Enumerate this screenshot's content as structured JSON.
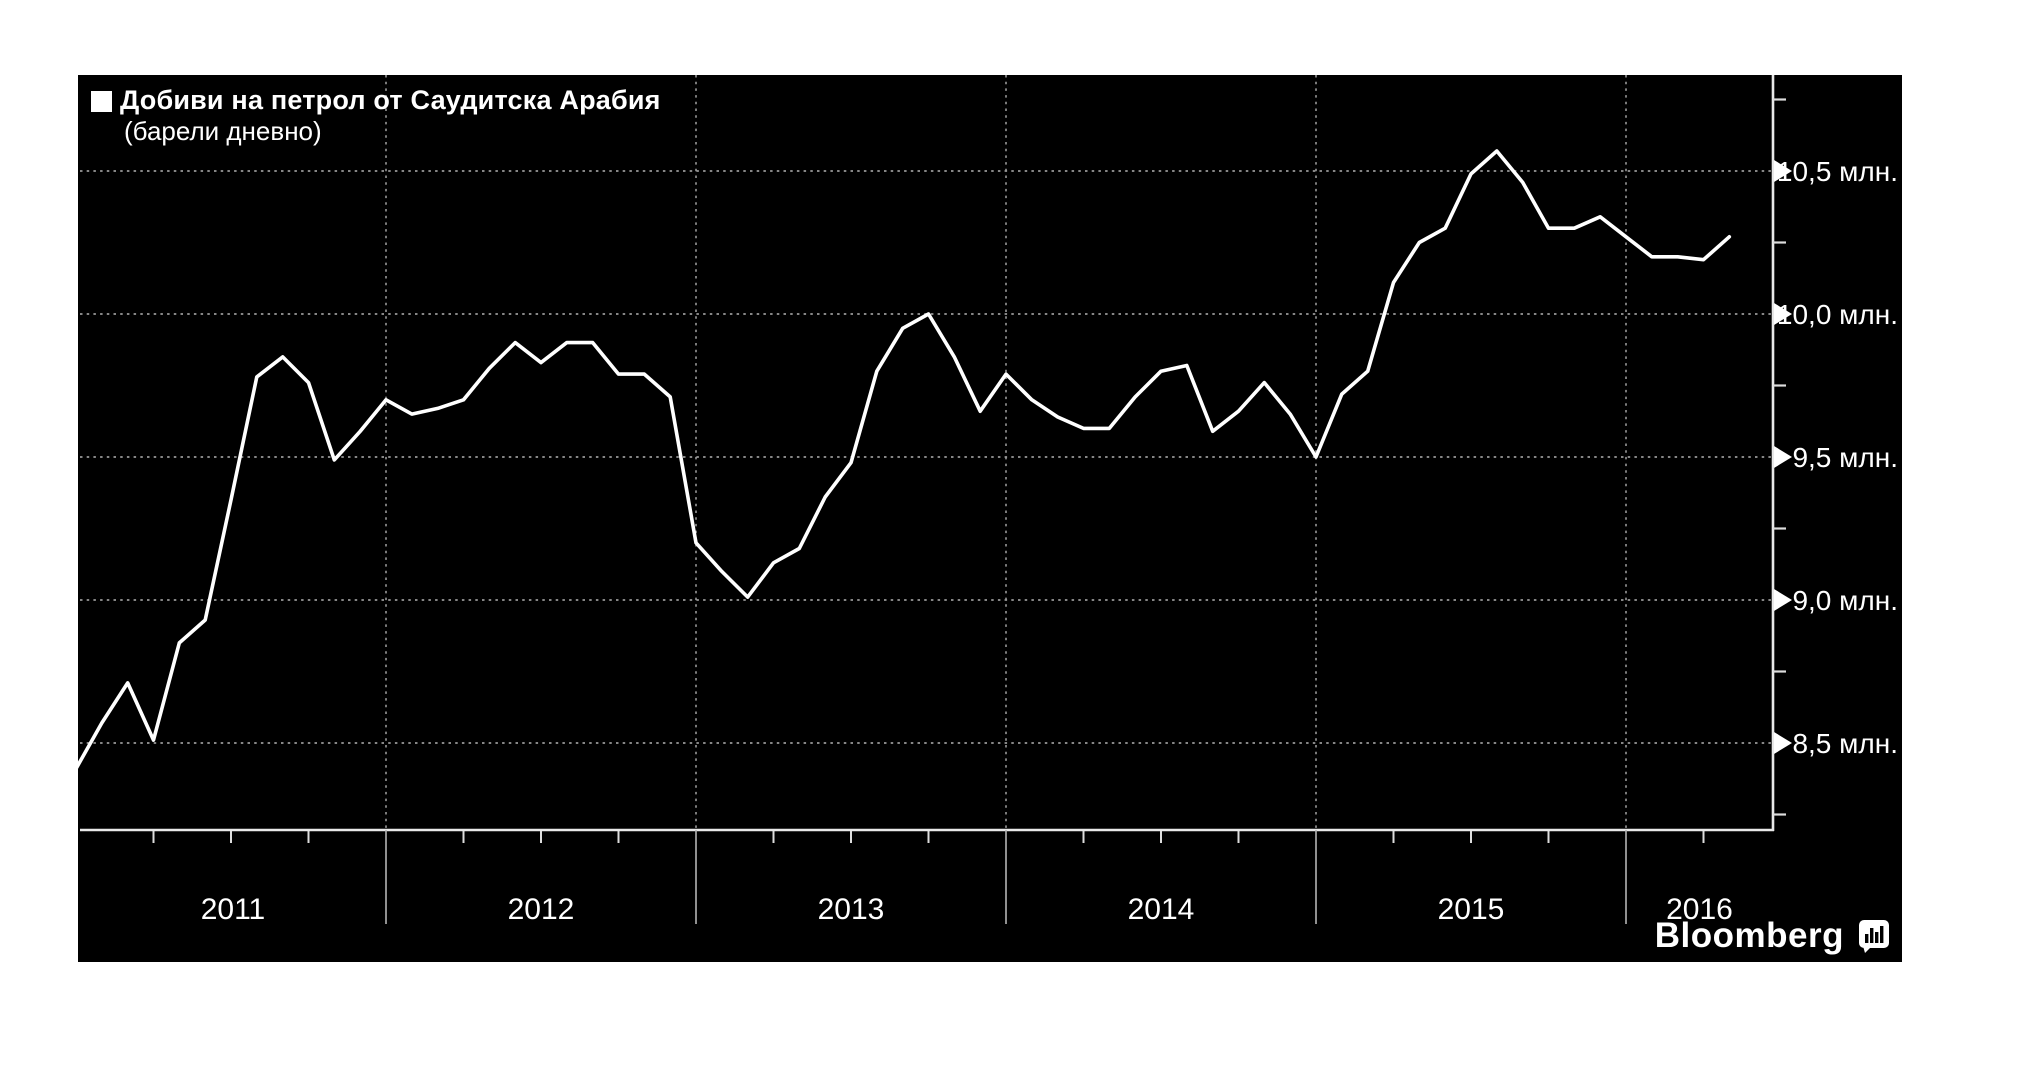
{
  "page": {
    "background": "#ffffff"
  },
  "figure": {
    "background": "#000000"
  },
  "legend": {
    "swatch_color": "#ffffff",
    "title": "Добиви на петрол от Саудитска Арабия",
    "subtitle": "(барели дневно)"
  },
  "branding": {
    "logo_text": "Bloomberg",
    "logo_icon": "bar-chart-bubble-icon"
  },
  "chart_data": {
    "type": "line",
    "title": "Добиви на петрол от Саудитска Арабия",
    "subtitle": "(барели дневно)",
    "unit": "млн. барела дневно",
    "frequency": "monthly",
    "start": "2011-01",
    "end": "2016-05",
    "series": [
      {
        "name": "Добиви на петрол от Саудитска Арабия",
        "color": "#ffffff",
        "values": [
          8.41,
          8.57,
          8.71,
          8.51,
          8.85,
          8.93,
          9.35,
          9.78,
          9.85,
          9.76,
          9.49,
          9.59,
          9.7,
          9.65,
          9.67,
          9.7,
          9.81,
          9.9,
          9.83,
          9.9,
          9.9,
          9.79,
          9.79,
          9.71,
          9.2,
          9.1,
          9.01,
          9.13,
          9.18,
          9.36,
          9.48,
          9.8,
          9.95,
          10.0,
          9.85,
          9.66,
          9.79,
          9.7,
          9.64,
          9.6,
          9.6,
          9.71,
          9.8,
          9.82,
          9.59,
          9.66,
          9.76,
          9.65,
          9.5,
          9.72,
          9.8,
          10.11,
          10.25,
          10.3,
          10.49,
          10.57,
          10.46,
          10.3,
          10.3,
          10.34,
          10.27,
          10.2,
          10.2,
          10.19,
          10.27
        ]
      }
    ],
    "x_axis": {
      "year_labels": [
        "2011",
        "2012",
        "2013",
        "2014",
        "2015",
        "2016"
      ],
      "minor_ticks": "quarterly"
    },
    "y_axis": {
      "side": "right",
      "ticks": [
        {
          "value": 10.5,
          "label": "10,5 млн."
        },
        {
          "value": 10.0,
          "label": "10,0 млн."
        },
        {
          "value": 9.5,
          "label": "9,5 млн."
        },
        {
          "value": 9.0,
          "label": "9,0 млн."
        },
        {
          "value": 8.5,
          "label": "8,5 млн."
        }
      ],
      "minor_tick_values": [
        10.75,
        10.25,
        9.75,
        9.25,
        8.75,
        8.25
      ],
      "ylim": [
        8.2,
        10.84
      ]
    },
    "grid": {
      "horizontal": "dotted",
      "vertical": "dotted-at-year-boundaries"
    },
    "colors": {
      "line": "#ffffff",
      "grid": "#999999",
      "axis": "#e8e8e8",
      "tick": "#dddddd",
      "separator": "#b5b5b5",
      "text": "#ffffff"
    }
  }
}
